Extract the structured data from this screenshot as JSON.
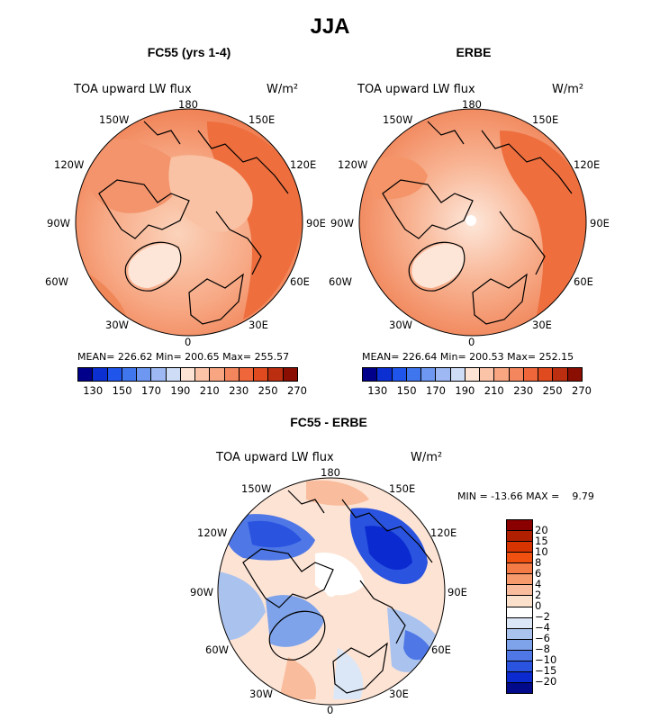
{
  "title": "JJA",
  "panels": [
    {
      "title": "FC55 (yrs 1-4)",
      "variable": "TOA upward LW flux",
      "units": "W/m²",
      "stats": {
        "mean_label": "MEAN=",
        "mean": "226.62",
        "min_label": "Min=",
        "min": "200.65",
        "max_label": "Max=",
        "max": "255.57"
      }
    },
    {
      "title": "ERBE",
      "variable": "TOA upward LW flux",
      "units": "W/m²",
      "stats": {
        "mean_label": "MEAN=",
        "mean": "226.64",
        "min_label": "Min=",
        "min": "200.53",
        "max_label": "Max=",
        "max": "252.15"
      }
    },
    {
      "title": "FC55 - ERBE",
      "variable": "TOA upward LW flux",
      "units": "W/m²",
      "minmax": "MIN = -13.66 MAX =    9.79"
    }
  ],
  "longitude_labels": [
    "180",
    "150E",
    "120E",
    "90E",
    "60E",
    "30E",
    "0",
    "30W",
    "60W",
    "90W",
    "120W",
    "150W"
  ],
  "colorbar_top": {
    "colors": [
      "#00008a",
      "#0b2fd1",
      "#1f55ea",
      "#3f76ee",
      "#6d97f1",
      "#9db8f3",
      "#cfdcf5",
      "#fde3d4",
      "#fbc3a8",
      "#f8a582",
      "#f4865e",
      "#f0663b",
      "#e04a1f",
      "#bb2f10",
      "#8a0e02"
    ],
    "labels": [
      "130",
      "150",
      "170",
      "190",
      "210",
      "230",
      "250",
      "270"
    ]
  },
  "colorbar_diff": {
    "colors": [
      "#8a0000",
      "#b02000",
      "#d83400",
      "#f05010",
      "#f47a46",
      "#f79a6c",
      "#f9bc9c",
      "#fbe0cc",
      "#ffffff",
      "#dbe6f6",
      "#aac3ee",
      "#7ea3ea",
      "#4f78e6",
      "#2a54e0",
      "#0b2bd0",
      "#000a8a"
    ],
    "labels": [
      "20",
      "15",
      "10",
      "8",
      "6",
      "4",
      "2",
      "0",
      "−2",
      "−4",
      "−6",
      "−8",
      "−10",
      "−15",
      "−20"
    ]
  }
}
